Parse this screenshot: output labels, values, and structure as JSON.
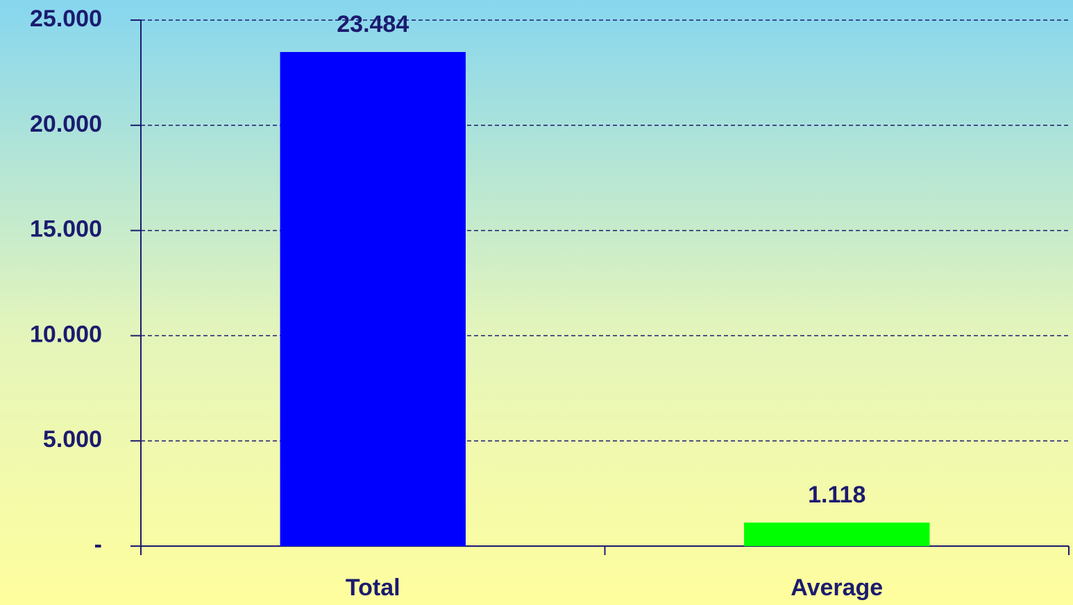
{
  "chart_data": {
    "type": "bar",
    "categories": [
      "Total",
      "Average"
    ],
    "values": [
      23484,
      1118
    ],
    "value_labels": [
      "23.484",
      "1.118"
    ],
    "colors": [
      "#0000ff",
      "#00ff00"
    ],
    "ylim": [
      0,
      25000
    ],
    "yticks": [
      {
        "value": 0,
        "label": "-"
      },
      {
        "value": 5000,
        "label": "5.000"
      },
      {
        "value": 10000,
        "label": "10.000"
      },
      {
        "value": 15000,
        "label": "15.000"
      },
      {
        "value": 20000,
        "label": "20.000"
      },
      {
        "value": 25000,
        "label": "25.000"
      }
    ],
    "grid": true
  }
}
